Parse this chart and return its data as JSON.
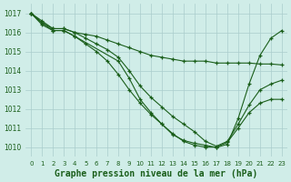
{
  "background_color": "#d0ede8",
  "grid_color": "#aacccc",
  "line_color": "#1a5e1a",
  "xlabel": "Graphe pression niveau de la mer (hPa)",
  "xlabel_fontsize": 7,
  "xtick_fontsize": 5,
  "ytick_fontsize": 5.5,
  "ylim": [
    1009.5,
    1017.5
  ],
  "xlim": [
    -0.5,
    23.5
  ],
  "yticks": [
    1010,
    1011,
    1012,
    1013,
    1014,
    1015,
    1016,
    1017
  ],
  "xticks": [
    0,
    1,
    2,
    3,
    4,
    5,
    6,
    7,
    8,
    9,
    10,
    11,
    12,
    13,
    14,
    15,
    16,
    17,
    18,
    19,
    20,
    21,
    22,
    23
  ],
  "lines": [
    {
      "x": [
        0,
        1,
        2,
        3,
        4,
        5,
        6,
        7,
        8,
        9,
        10,
        11,
        12,
        13,
        14,
        15,
        16,
        17,
        18,
        19,
        20,
        21,
        22,
        23
      ],
      "y": [
        1017.0,
        1016.6,
        1016.2,
        1016.2,
        1016.0,
        1015.9,
        1015.8,
        1015.6,
        1015.4,
        1015.2,
        1015.0,
        1014.8,
        1014.7,
        1014.6,
        1014.5,
        1014.5,
        1014.5,
        1014.4,
        1014.4,
        1014.4,
        1014.4,
        1014.35,
        1014.35,
        1014.3
      ]
    },
    {
      "x": [
        0,
        1,
        2,
        3,
        4,
        5,
        6,
        7,
        8,
        9,
        10,
        11,
        12,
        13,
        14,
        15,
        16,
        17,
        18,
        19,
        20,
        21,
        22,
        23
      ],
      "y": [
        1017.0,
        1016.5,
        1016.2,
        1016.2,
        1016.0,
        1015.7,
        1015.4,
        1015.1,
        1014.7,
        1014.0,
        1013.2,
        1012.6,
        1012.1,
        1011.6,
        1011.2,
        1010.8,
        1010.3,
        1010.05,
        1010.3,
        1011.2,
        1012.2,
        1013.0,
        1013.3,
        1013.5
      ]
    },
    {
      "x": [
        0,
        1,
        2,
        3,
        4,
        5,
        6,
        7,
        8,
        9,
        10,
        11,
        12,
        13,
        14,
        15,
        16,
        17,
        18,
        19,
        20,
        21,
        22,
        23
      ],
      "y": [
        1017.0,
        1016.5,
        1016.1,
        1016.1,
        1015.8,
        1015.4,
        1015.0,
        1014.5,
        1013.8,
        1013.0,
        1012.3,
        1011.7,
        1011.2,
        1010.7,
        1010.3,
        1010.1,
        1010.0,
        1010.0,
        1010.25,
        1011.0,
        1011.8,
        1012.3,
        1012.5,
        1012.5
      ]
    },
    {
      "x": [
        0,
        1,
        2,
        3,
        4,
        8,
        9,
        10,
        11,
        12,
        13,
        14,
        15,
        16,
        17,
        18,
        19,
        20,
        21,
        22,
        23
      ],
      "y": [
        1017.0,
        1016.4,
        1016.1,
        1016.1,
        1015.8,
        1014.5,
        1013.6,
        1012.5,
        1011.8,
        1011.2,
        1010.65,
        1010.35,
        1010.2,
        1010.1,
        1009.98,
        1010.15,
        1011.5,
        1013.3,
        1014.8,
        1015.7,
        1016.1
      ]
    }
  ]
}
